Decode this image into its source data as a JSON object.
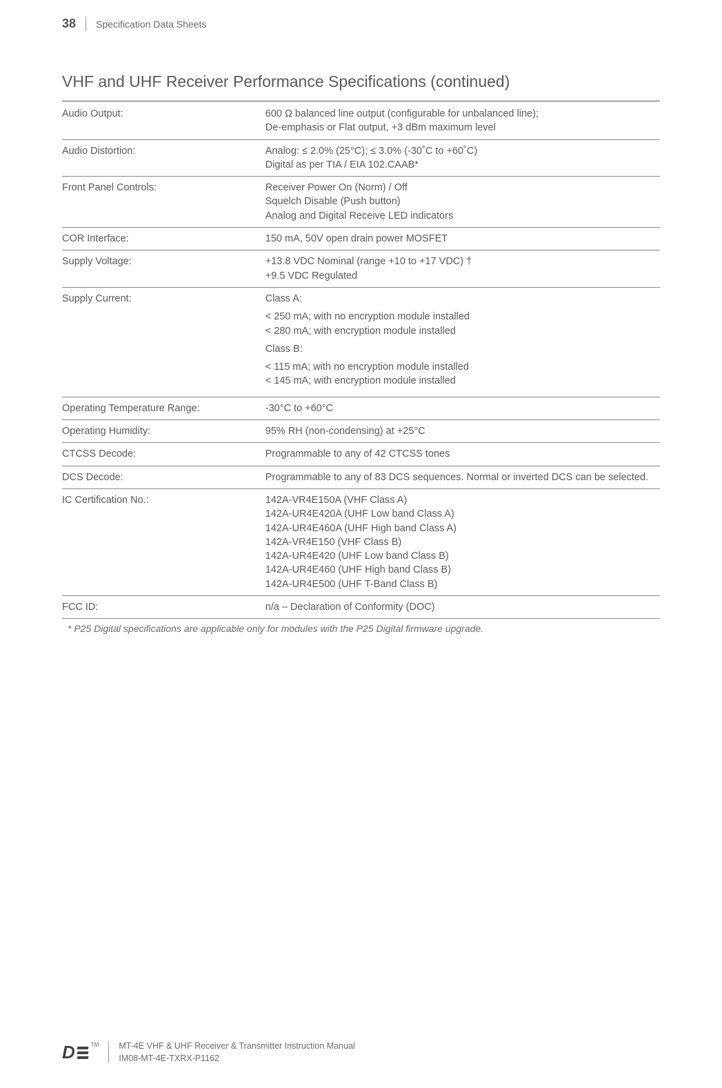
{
  "header": {
    "page_number": "38",
    "section": "Specification Data Sheets"
  },
  "title": "VHF and UHF Receiver Performance Specifications (continued)",
  "rows": [
    {
      "label": "Audio Output:",
      "value": "600 Ω balanced line output (configurable for unbalanced line);\nDe-emphasis or Flat output, +3 dBm maximum level"
    },
    {
      "label": "Audio Distortion:",
      "value": "Analog: ≤ 2.0% (25°C); ≤ 3.0% (-30˚C to +60˚C)\nDigital as per TIA / EIA 102.CAAB*"
    },
    {
      "label": "Front Panel Controls:",
      "value": "Receiver Power On (Norm) / Off\nSquelch Disable (Push button)\nAnalog and Digital Receive LED indicators"
    },
    {
      "label": "COR Interface:",
      "value": "150 mA, 50V open drain power MOSFET"
    },
    {
      "label": "Supply Voltage:",
      "value": "+13.8 VDC Nominal (range +10 to +17 VDC) †\n+9.5 VDC Regulated"
    },
    {
      "label": "Supply Current:",
      "value_blocks": [
        "Class A:",
        "< 250 mA; with no encryption module installed\n< 280 mA; with encryption module installed",
        "Class B:",
        "< 115 mA; with no encryption module installed\n< 145 mA; with encryption module installed"
      ]
    },
    {
      "label": "Operating Temperature Range:",
      "value": "-30°C to +60°C"
    },
    {
      "label": "Operating Humidity:",
      "value": "95% RH (non-condensing) at +25°C"
    },
    {
      "label": "CTCSS Decode:",
      "value": "Programmable to any of 42 CTCSS tones"
    },
    {
      "label": "DCS Decode:",
      "value": "Programmable to any of 83 DCS sequences. Normal or inverted DCS can be selected."
    },
    {
      "label": "IC Certification No.:",
      "value": "142A-VR4E150A (VHF Class A)\n142A-UR4E420A (UHF Low band Class A)\n142A-UR4E460A (UHF High band Class A)\n142A-VR4E150 (VHF Class B)\n142A-UR4E420 (UHF Low band Class B)\n142A-UR4E460 (UHF High band Class B)\n142A-UR4E500 (UHF T-Band Class B)"
    },
    {
      "label": "FCC ID:",
      "value": "n/a – Declaration of Conformity (DOC)"
    }
  ],
  "footnote": "* P25 Digital specifications are applicable only for modules with the P25 Digital firmware upgrade.",
  "footer": {
    "line1": "MT-4E VHF & UHF Receiver & Transmitter Instruction Manual",
    "line2": "IM08-MT-4E-TXRX-P1162"
  }
}
